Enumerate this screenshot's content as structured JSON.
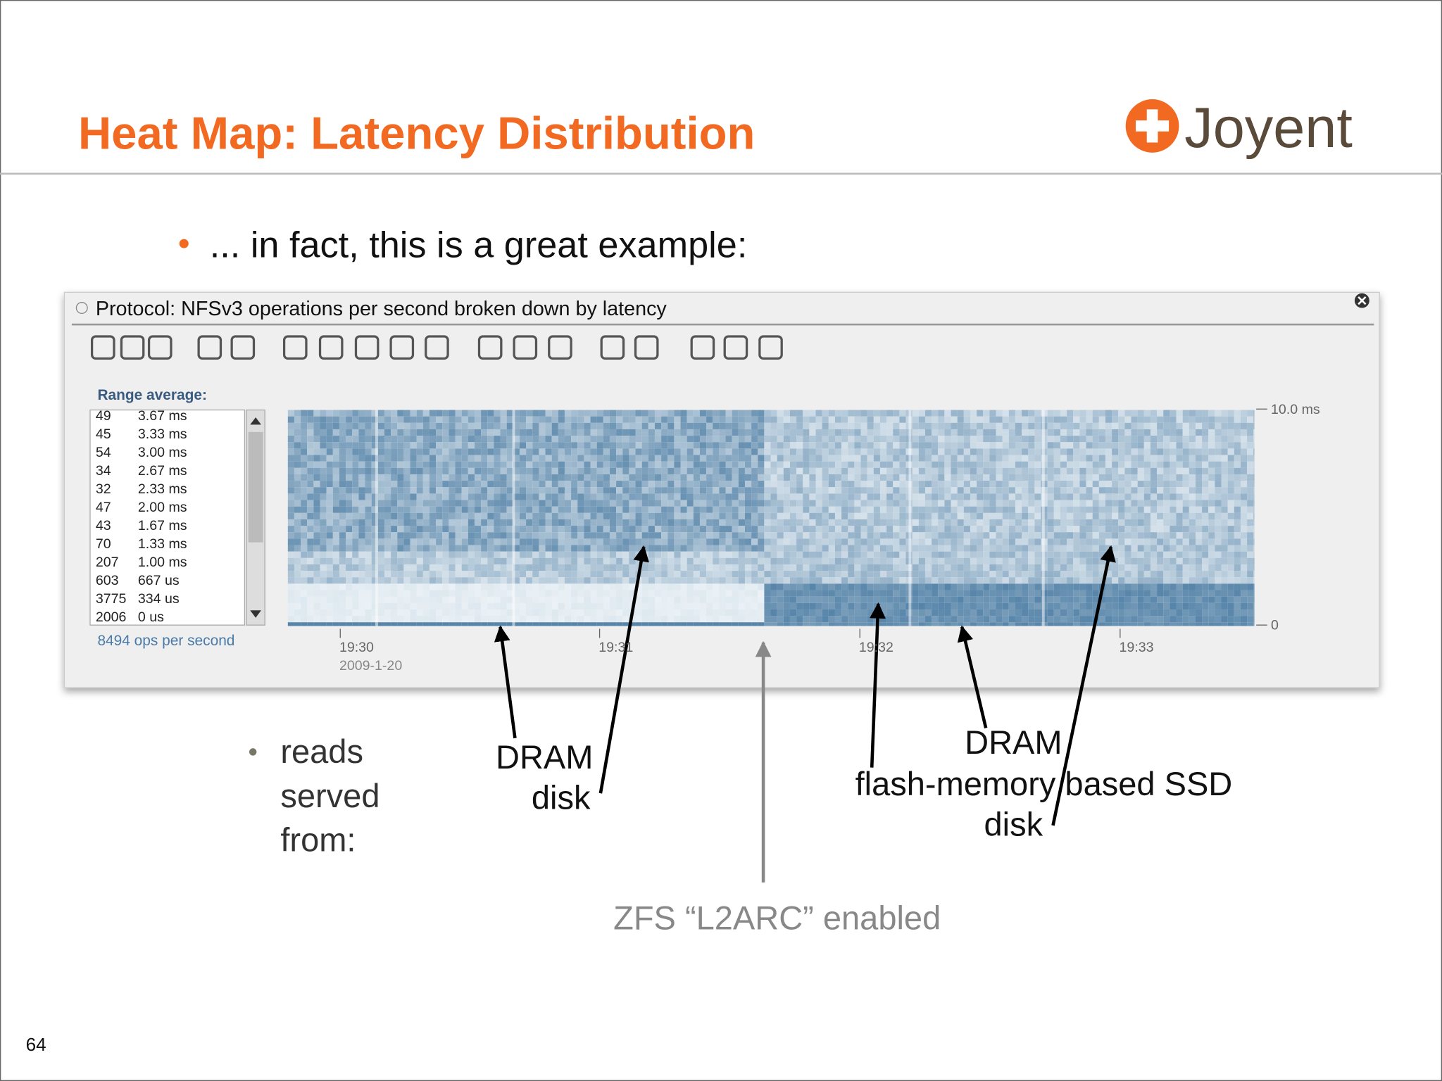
{
  "header": {
    "title": "Heat Map: Latency Distribution",
    "logo": "Joyent"
  },
  "bullet": "... in fact, this is a great example:",
  "panel": {
    "title": "Protocol: NFSv3 operations per second broken down by latency",
    "range_label": "Range average:",
    "rows": [
      [
        "49",
        "3.67 ms"
      ],
      [
        "45",
        "3.33 ms"
      ],
      [
        "54",
        "3.00 ms"
      ],
      [
        "34",
        "2.67 ms"
      ],
      [
        "32",
        "2.33 ms"
      ],
      [
        "47",
        "2.00 ms"
      ],
      [
        "43",
        "1.67 ms"
      ],
      [
        "70",
        "1.33 ms"
      ],
      [
        "207",
        "1.00 ms"
      ],
      [
        "603",
        "667 us"
      ],
      [
        "3775",
        "334 us"
      ],
      [
        "2006",
        "0 us"
      ]
    ],
    "ops": "8494 ops per second",
    "y_labels": [
      "10.0 ms",
      "0"
    ],
    "x_labels": [
      "19:30",
      "19:31",
      "19:32",
      "19:33"
    ],
    "date": "2009-1-20"
  },
  "annotations": {
    "reads": [
      "reads",
      "served",
      "from:"
    ],
    "left": [
      "DRAM",
      "disk"
    ],
    "right": [
      "DRAM",
      "flash-memory based SSD",
      "disk"
    ],
    "l2arc": "ZFS “L2ARC” enabled"
  },
  "page_number": "64"
}
